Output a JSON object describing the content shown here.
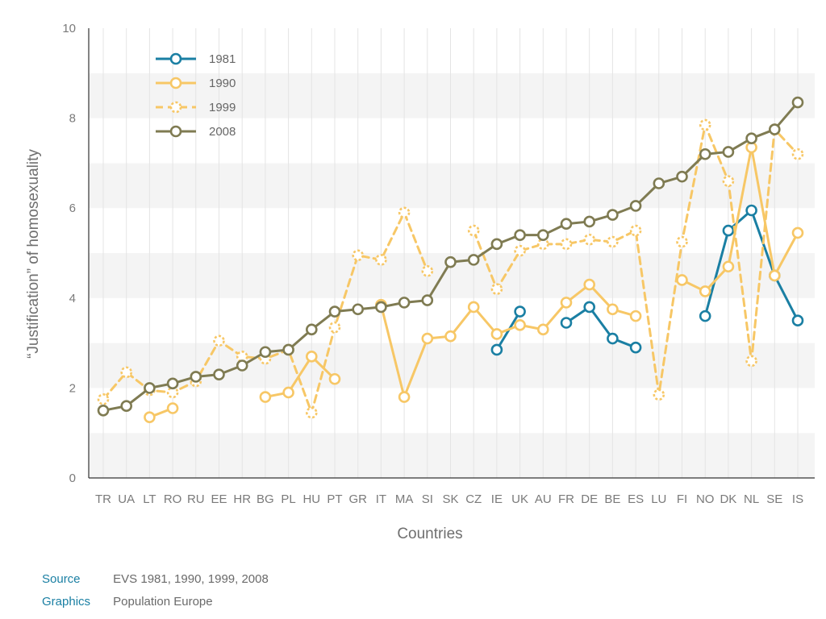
{
  "chart_data": {
    "type": "line",
    "xlabel": "Countries",
    "ylabel": "“Justification” of homosexuality",
    "ylim": [
      0,
      10
    ],
    "yticks": [
      0,
      2,
      4,
      6,
      8,
      10
    ],
    "categories": [
      "TR",
      "UA",
      "LT",
      "RO",
      "RU",
      "EE",
      "HR",
      "BG",
      "PL",
      "HU",
      "PT",
      "GR",
      "IT",
      "MA",
      "SI",
      "SK",
      "CZ",
      "IE",
      "UK",
      "AU",
      "FR",
      "DE",
      "BE",
      "ES",
      "LU",
      "FI",
      "NO",
      "DK",
      "NL",
      "SE",
      "IS"
    ],
    "legend_position": "top-left",
    "grid": true,
    "series": [
      {
        "name": "1981",
        "color": "#1a7fa3",
        "dashed": false,
        "values": [
          null,
          null,
          null,
          null,
          null,
          null,
          null,
          null,
          null,
          null,
          null,
          null,
          null,
          null,
          null,
          null,
          null,
          2.85,
          3.7,
          null,
          3.45,
          3.8,
          3.1,
          2.9,
          null,
          null,
          3.6,
          5.5,
          5.95,
          4.5,
          3.5
        ]
      },
      {
        "name": "1990",
        "color": "#f7c766",
        "dashed": false,
        "values": [
          null,
          null,
          1.35,
          1.55,
          null,
          null,
          null,
          1.8,
          1.9,
          2.7,
          2.2,
          null,
          3.85,
          1.8,
          3.1,
          3.15,
          3.8,
          3.2,
          3.4,
          3.3,
          3.9,
          4.3,
          3.75,
          3.6,
          null,
          4.4,
          4.15,
          4.7,
          7.35,
          4.5,
          5.45
        ]
      },
      {
        "name": "1999",
        "color": "#f7c766",
        "dashed": true,
        "values": [
          1.75,
          2.35,
          1.95,
          1.9,
          2.15,
          3.05,
          2.7,
          2.65,
          2.85,
          1.45,
          3.35,
          4.95,
          4.85,
          5.9,
          4.6,
          null,
          5.5,
          4.2,
          5.05,
          5.2,
          5.2,
          5.3,
          5.25,
          5.5,
          1.85,
          5.25,
          7.85,
          6.6,
          2.6,
          7.75,
          7.2
        ]
      },
      {
        "name": "2008",
        "color": "#7f7b52",
        "dashed": false,
        "values": [
          1.5,
          1.6,
          2.0,
          2.1,
          2.25,
          2.3,
          2.5,
          2.8,
          2.85,
          3.3,
          3.7,
          3.75,
          3.8,
          3.9,
          3.95,
          4.8,
          4.85,
          5.2,
          5.4,
          5.4,
          5.65,
          5.7,
          5.85,
          6.05,
          6.55,
          6.7,
          7.2,
          7.25,
          7.55,
          7.75,
          8.35
        ]
      }
    ]
  },
  "footer": {
    "source_label": "Source",
    "source_value": "EVS 1981, 1990, 1999, 2008",
    "graphics_label": "Graphics",
    "graphics_value": "Population Europe"
  }
}
